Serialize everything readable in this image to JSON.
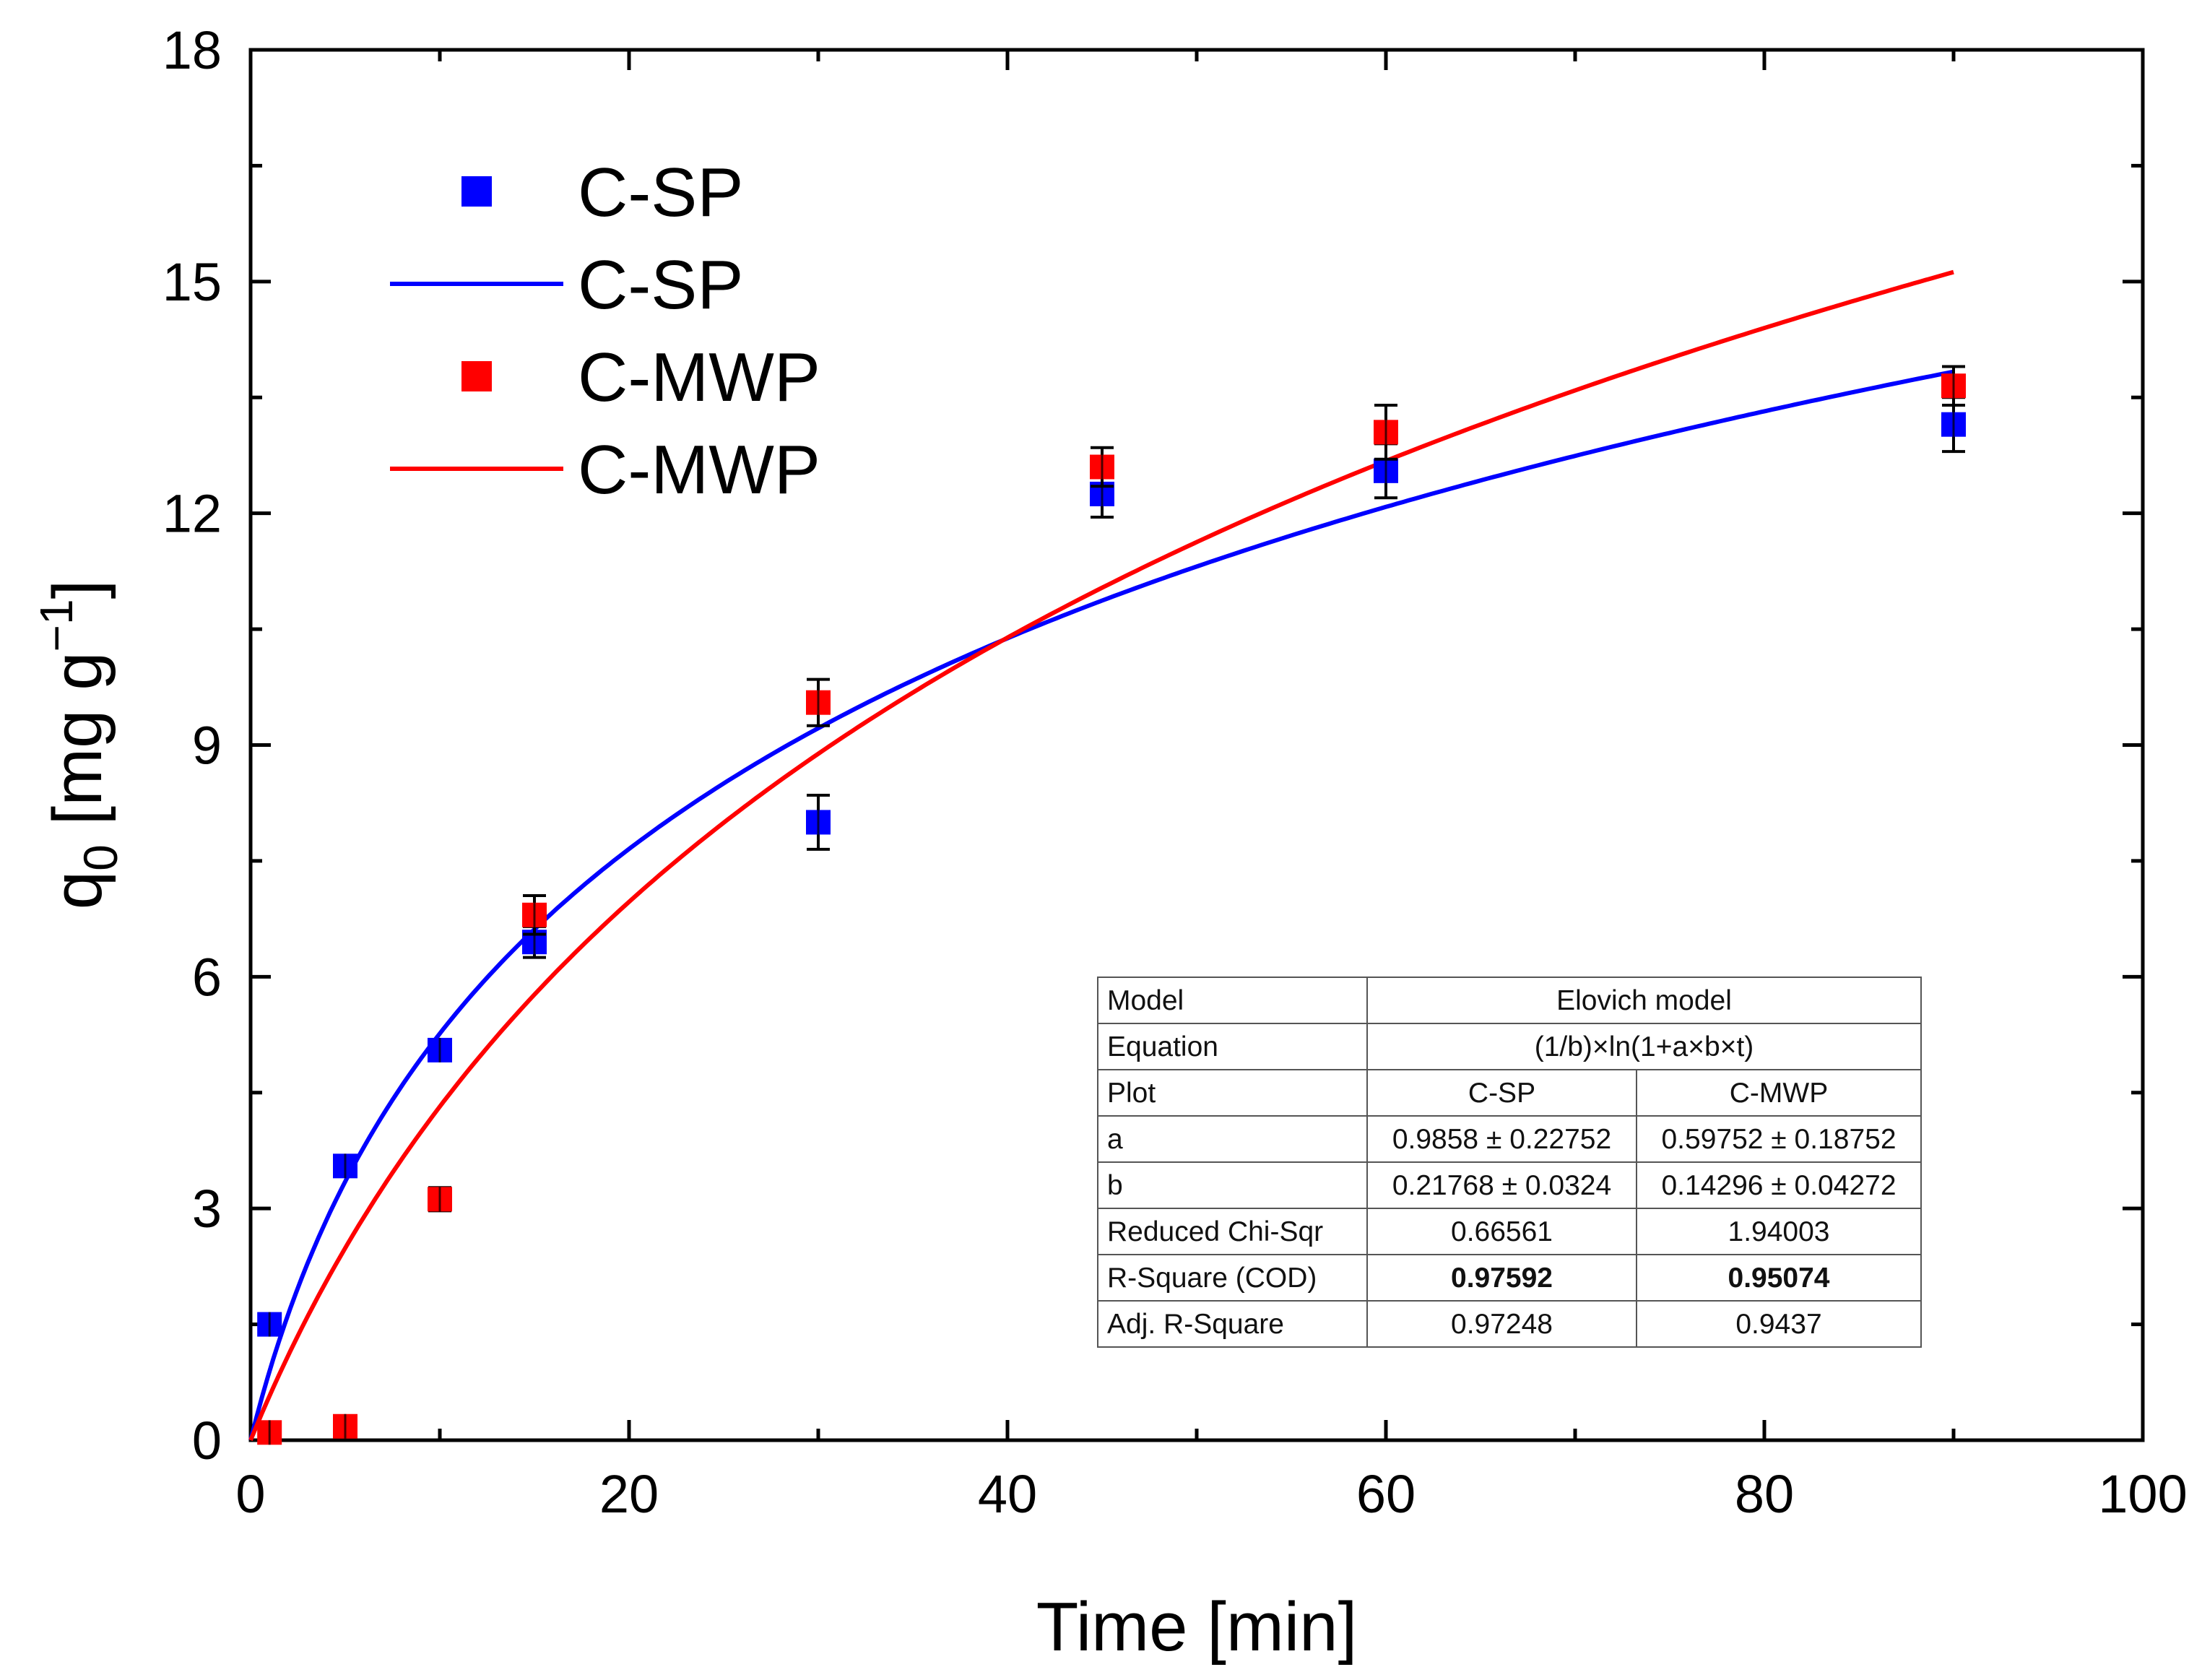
{
  "chart_data": {
    "type": "scatter",
    "xlabel": "Time [min]",
    "ylabel": {
      "base": "q",
      "sub": "0",
      "unit_pre": " [mg g",
      "sup": "−1",
      "unit_post": "]"
    },
    "xlim": [
      0,
      100
    ],
    "ylim": [
      0,
      18
    ],
    "xticks": [
      0,
      20,
      40,
      60,
      80,
      100
    ],
    "yticks": [
      0,
      3,
      6,
      9,
      12,
      15,
      18
    ],
    "grid": false,
    "legend_position": "top-left",
    "legend": [
      {
        "label": "C-SP",
        "kind": "marker",
        "color": "#0000ff"
      },
      {
        "label": "C-SP",
        "kind": "line",
        "color": "#0000ff"
      },
      {
        "label": "C-MWP",
        "kind": "marker",
        "color": "#ff0000"
      },
      {
        "label": "C-MWP",
        "kind": "line",
        "color": "#ff0000"
      }
    ],
    "series": [
      {
        "name": "C-SP",
        "kind": "scatter",
        "color": "#0000ff",
        "x": [
          1,
          5,
          10,
          15,
          30,
          45,
          60,
          90
        ],
        "y": [
          1.5,
          3.55,
          5.05,
          6.45,
          8.0,
          12.25,
          12.55,
          13.15
        ],
        "err": [
          0.1,
          0.1,
          0.1,
          0.2,
          0.35,
          0.3,
          0.35,
          0.35
        ]
      },
      {
        "name": "C-MWP",
        "kind": "scatter",
        "color": "#ff0000",
        "x": [
          1,
          5,
          10,
          15,
          30,
          45,
          60,
          90
        ],
        "y": [
          0.1,
          0.18,
          3.12,
          6.8,
          9.55,
          12.6,
          13.05,
          13.65
        ],
        "err": [
          0.1,
          0.1,
          0.15,
          0.25,
          0.3,
          0.25,
          0.35,
          0.25
        ]
      },
      {
        "name": "C-SP",
        "kind": "fit",
        "color": "#0000ff",
        "model": "elovich",
        "a": 0.9858,
        "b": 0.21768,
        "x_range": [
          0,
          90
        ]
      },
      {
        "name": "C-MWP",
        "kind": "fit",
        "color": "#ff0000",
        "model": "elovich",
        "a": 0.59752,
        "b": 0.14296,
        "x_range": [
          0,
          90
        ]
      }
    ],
    "table": {
      "model_label": "Model",
      "model_value": "Elovich model",
      "equation_label": "Equation",
      "equation_value": "(1/b)×ln(1+a×b×t)",
      "plot_label": "Plot",
      "plot_cols": [
        "C-SP",
        "C-MWP"
      ],
      "rows": [
        {
          "label": "a",
          "values": [
            "0.9858 ± 0.22752",
            "0.59752 ± 0.18752"
          ],
          "bold": false
        },
        {
          "label": "b",
          "values": [
            "0.21768 ± 0.0324",
            "0.14296 ± 0.04272"
          ],
          "bold": false
        },
        {
          "label": "Reduced Chi-Sqr",
          "values": [
            "0.66561",
            "1.94003"
          ],
          "bold": false
        },
        {
          "label": "R-Square (COD)",
          "values": [
            "0.97592",
            "0.95074"
          ],
          "bold": true
        },
        {
          "label": "Adj. R-Square",
          "values": [
            "0.97248",
            "0.9437"
          ],
          "bold": false
        }
      ]
    }
  }
}
